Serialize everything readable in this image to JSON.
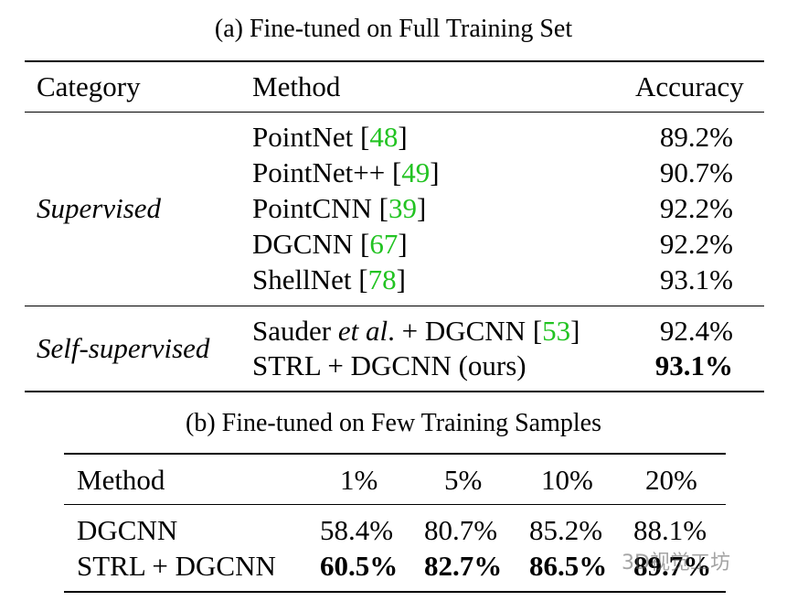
{
  "table_a": {
    "caption": "(a) Fine-tuned on Full Training Set",
    "headers": {
      "category": "Category",
      "method": "Method",
      "accuracy": "Accuracy"
    },
    "groups": [
      {
        "category": "Supervised",
        "rows": [
          {
            "method": "PointNet",
            "cite": "48",
            "accuracy": "89.2%"
          },
          {
            "method": "PointNet++",
            "cite": "49",
            "accuracy": "90.7%"
          },
          {
            "method": "PointCNN",
            "cite": "39",
            "accuracy": "92.2%"
          },
          {
            "method": "DGCNN",
            "cite": "67",
            "accuracy": "92.2%"
          },
          {
            "method": "ShellNet",
            "cite": "78",
            "accuracy": "93.1%"
          }
        ]
      },
      {
        "category": "Self-supervised",
        "rows": [
          {
            "method_pre": "Sauder ",
            "method_it": "et al",
            "method_post": ". + DGCNN",
            "cite": "53",
            "accuracy": "92.4%"
          },
          {
            "method": "STRL + DGCNN (ours)",
            "accuracy": "93.1%"
          }
        ]
      }
    ]
  },
  "table_b": {
    "caption": "(b) Fine-tuned on Few Training Samples",
    "headers": [
      "Method",
      "1%",
      "5%",
      "10%",
      "20%"
    ],
    "rows": [
      {
        "method": "DGCNN",
        "values": [
          "58.4%",
          "80.7%",
          "85.2%",
          "88.1%"
        ]
      },
      {
        "method": "STRL + DGCNN",
        "values": [
          "60.5%",
          "82.7%",
          "86.5%",
          "89.7%"
        ]
      }
    ]
  },
  "watermark": "3D视觉工坊"
}
